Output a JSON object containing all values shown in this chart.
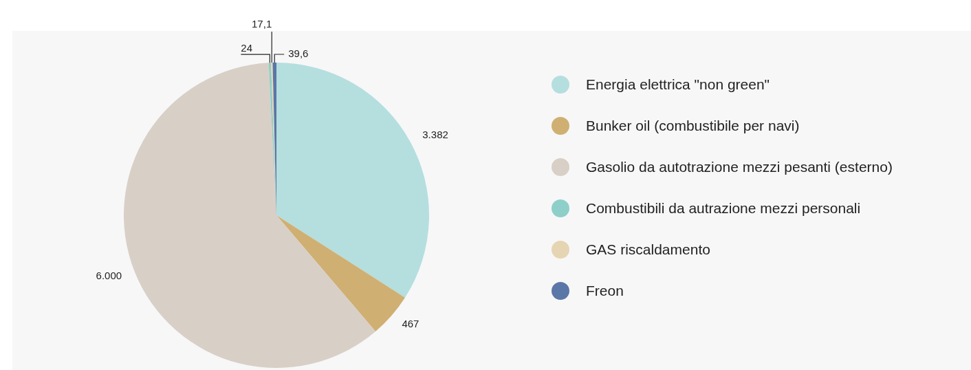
{
  "chart_data": {
    "type": "pie",
    "categories": [
      "Energia elettrica \"non green\"",
      "Bunker oil (combustibile per navi)",
      "Gasolio da autotrazione mezzi pesanti (esterno)",
      "Combustibili da autrazione mezzi personali",
      "GAS riscaldamento",
      "Freon"
    ],
    "values": [
      3382,
      467,
      6000,
      24,
      17.1,
      39.6
    ],
    "value_labels": [
      "3.382",
      "467",
      "6.000",
      "24",
      "17,1",
      "39,6"
    ],
    "colors": [
      "#b5dedf",
      "#cfb072",
      "#d8cfc7",
      "#8ecfc9",
      "#e6d5b3",
      "#5a77a8"
    ],
    "legend": "right"
  }
}
